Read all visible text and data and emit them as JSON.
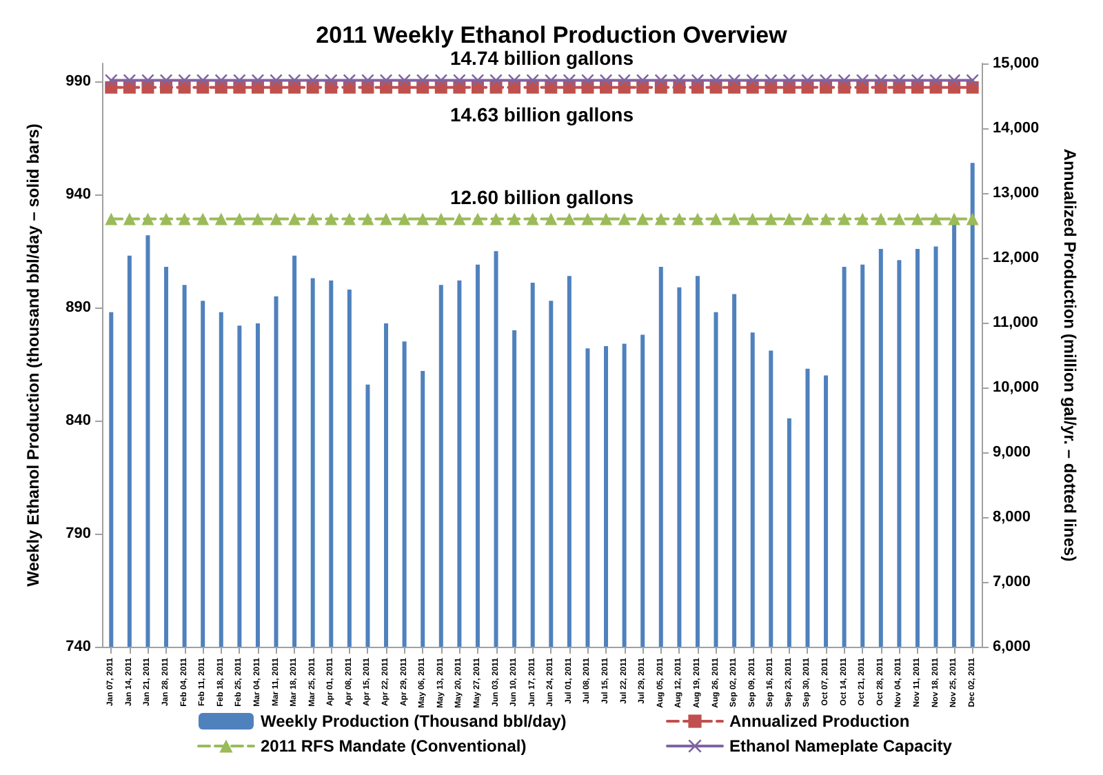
{
  "chart_data": {
    "type": "bar",
    "title": "2011 Weekly Ethanol Production Overview",
    "ylabel": "Weekly Ethanol Production (thousand bbl/day – solid bars)",
    "y2label": "Annualized Production (million gal/yr. – dotted lines)",
    "categories": [
      "Jan 07, 2011",
      "Jan 14, 2011",
      "Jan 21, 2011",
      "Jan 28, 2011",
      "Feb 04, 2011",
      "Feb 11, 2011",
      "Feb 18, 2011",
      "Feb 25, 2011",
      "Mar 04, 2011",
      "Mar 11, 2011",
      "Mar 18, 2011",
      "Mar 25, 2011",
      "Apr 01, 2011",
      "Apr 08, 2011",
      "Apr 15, 2011",
      "Apr 22, 2011",
      "Apr 29, 2011",
      "May 06, 2011",
      "May 13, 2011",
      "May 20, 2011",
      "May 27, 2011",
      "Jun 03, 2011",
      "Jun 10, 2011",
      "Jun 17, 2011",
      "Jun 24, 2011",
      "Jul 01, 2011",
      "Jul 08, 2011",
      "Jul 15, 2011",
      "Jul 22, 2011",
      "Jul 29, 2011",
      "Aug 05, 2011",
      "Aug 12, 2011",
      "Aug 19, 2011",
      "Aug 26, 2011",
      "Sep 02, 2011",
      "Sep 09, 2011",
      "Sep 16, 2011",
      "Sep 23, 2011",
      "Sep 30, 2011",
      "Oct 07, 2011",
      "Oct 14, 2011",
      "Oct 21, 2011",
      "Oct 28, 2011",
      "Nov 04, 2011",
      "Nov 11, 2011",
      "Nov 18, 2011",
      "Nov 25, 2011",
      "Dec 02, 2011"
    ],
    "series": [
      {
        "name": "Weekly Production (Thousand bbl/day)",
        "color": "#4f81bd",
        "values": [
          888,
          913,
          922,
          908,
          900,
          893,
          888,
          882,
          883,
          895,
          913,
          903,
          902,
          898,
          856,
          883,
          875,
          862,
          900,
          902,
          909,
          915,
          880,
          901,
          893,
          904,
          872,
          873,
          874,
          878,
          908,
          899,
          904,
          888,
          896,
          879,
          871,
          841,
          863,
          860,
          908,
          909,
          916,
          911,
          916,
          917,
          928,
          954
        ]
      },
      {
        "name": "Annualized Production",
        "type": "line",
        "axis": "y2",
        "color": "#c0504d",
        "marker": "square",
        "line_style": "dashed",
        "values": [
          14630,
          14630,
          14630,
          14630,
          14630,
          14630,
          14630,
          14630,
          14630,
          14630,
          14630,
          14630,
          14630,
          14630,
          14630,
          14630,
          14630,
          14630,
          14630,
          14630,
          14630,
          14630,
          14630,
          14630,
          14630,
          14630,
          14630,
          14630,
          14630,
          14630,
          14630,
          14630,
          14630,
          14630,
          14630,
          14630,
          14630,
          14630,
          14630,
          14630,
          14630,
          14630,
          14630,
          14630,
          14630,
          14630,
          14630,
          14630
        ]
      },
      {
        "name": "2011 RFS Mandate (Conventional)",
        "type": "line",
        "axis": "y2",
        "color": "#9bbb59",
        "marker": "triangle",
        "line_style": "dashed",
        "values": [
          12600,
          12600,
          12600,
          12600,
          12600,
          12600,
          12600,
          12600,
          12600,
          12600,
          12600,
          12600,
          12600,
          12600,
          12600,
          12600,
          12600,
          12600,
          12600,
          12600,
          12600,
          12600,
          12600,
          12600,
          12600,
          12600,
          12600,
          12600,
          12600,
          12600,
          12600,
          12600,
          12600,
          12600,
          12600,
          12600,
          12600,
          12600,
          12600,
          12600,
          12600,
          12600,
          12600,
          12600,
          12600,
          12600,
          12600,
          12600
        ]
      },
      {
        "name": "Ethanol Nameplate Capacity",
        "type": "line",
        "axis": "y2",
        "color": "#8064a2",
        "marker": "cross",
        "line_style": "solid",
        "values": [
          14740,
          14740,
          14740,
          14740,
          14740,
          14740,
          14740,
          14740,
          14740,
          14740,
          14740,
          14740,
          14740,
          14740,
          14740,
          14740,
          14740,
          14740,
          14740,
          14740,
          14740,
          14740,
          14740,
          14740,
          14740,
          14740,
          14740,
          14740,
          14740,
          14740,
          14740,
          14740,
          14740,
          14740,
          14740,
          14740,
          14740,
          14740,
          14740,
          14740,
          14740,
          14740,
          14740,
          14740,
          14740,
          14740,
          14740,
          14740
        ]
      }
    ],
    "ylim": [
      740,
      998
    ],
    "yticks": [
      740,
      790,
      840,
      890,
      940,
      990
    ],
    "y2lim": [
      6000,
      15000
    ],
    "y2ticks": [
      {
        "value": 6000,
        "label": "6,000"
      },
      {
        "value": 7000,
        "label": "7,000"
      },
      {
        "value": 8000,
        "label": "8,000"
      },
      {
        "value": 9000,
        "label": "9,000"
      },
      {
        "value": 10000,
        "label": "10,000"
      },
      {
        "value": 11000,
        "label": "11,000"
      },
      {
        "value": 12000,
        "label": "12,000"
      },
      {
        "value": 13000,
        "label": "13,000"
      },
      {
        "value": 14000,
        "label": "14,000"
      },
      {
        "value": 15000,
        "label": "15,000"
      }
    ],
    "annotations": [
      "14.74 billion gallons",
      "14.63 billion gallons",
      "12.60 billion gallons"
    ],
    "grid": false,
    "legend": "bottom"
  }
}
